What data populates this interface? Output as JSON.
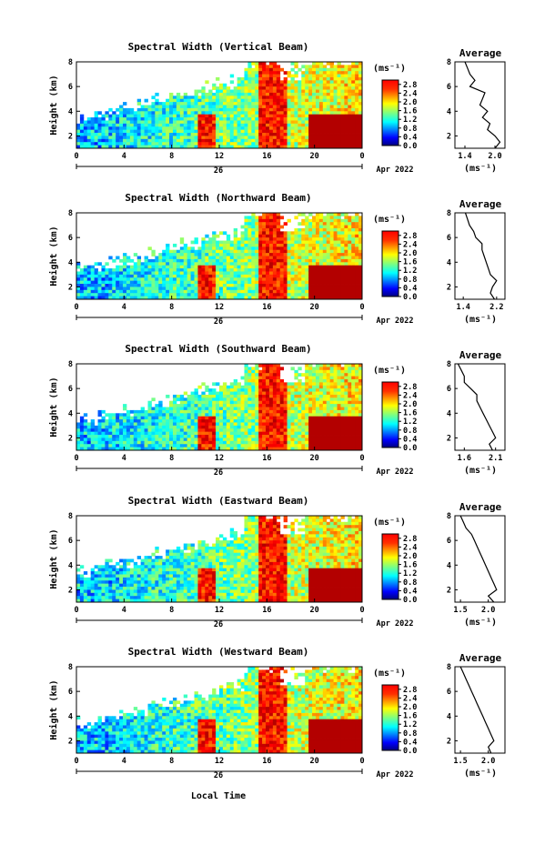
{
  "figure": {
    "xlabel": "Local Time",
    "date_label": "Apr 2022",
    "day_label": "26",
    "ylabel": "Height (km)",
    "avg_title": "Average",
    "unit_label": "(ms⁻¹)",
    "colorbar_ticks": [
      "2.8",
      "2.4",
      "2.0",
      "1.6",
      "1.2",
      "0.8",
      "0.4",
      "0.0"
    ]
  },
  "chart_data": [
    {
      "type": "heatmap",
      "title": "Spectral Width (Vertical Beam)",
      "x_ticks": [
        "0",
        "4",
        "8",
        "12",
        "16",
        "20",
        "0"
      ],
      "y_ticks": [
        "8",
        "6",
        "4",
        "2"
      ],
      "xlim": [
        0,
        24
      ],
      "ylim": [
        1,
        8
      ],
      "colorbar_range": [
        0,
        3.0
      ],
      "average_profile": {
        "x_ticks": [
          "1.4",
          "2.0"
        ],
        "xlim": [
          1.2,
          2.2
        ],
        "heights": [
          1.0,
          1.5,
          2.0,
          2.5,
          3.0,
          3.5,
          4.0,
          4.5,
          5.0,
          5.5,
          6.0,
          6.5,
          7.0,
          7.5,
          8.0
        ],
        "values": [
          2.0,
          2.1,
          2.0,
          1.85,
          1.9,
          1.75,
          1.85,
          1.7,
          1.75,
          1.8,
          1.5,
          1.6,
          1.5,
          1.45,
          1.4
        ]
      }
    },
    {
      "type": "heatmap",
      "title": "Spectral Width (Northward Beam)",
      "x_ticks": [
        "0",
        "4",
        "8",
        "12",
        "16",
        "20",
        "0"
      ],
      "y_ticks": [
        "8",
        "6",
        "4",
        "2"
      ],
      "xlim": [
        0,
        24
      ],
      "ylim": [
        1,
        8
      ],
      "colorbar_range": [
        0,
        3.0
      ],
      "average_profile": {
        "x_ticks": [
          "1.4",
          "2.2"
        ],
        "xlim": [
          1.2,
          2.4
        ],
        "heights": [
          1.0,
          1.5,
          2.0,
          2.5,
          3.0,
          3.5,
          4.0,
          4.5,
          5.0,
          5.5,
          6.0,
          6.5,
          7.0,
          7.5,
          8.0
        ],
        "values": [
          2.15,
          2.05,
          2.1,
          2.2,
          2.05,
          2.0,
          1.95,
          1.9,
          1.85,
          1.85,
          1.7,
          1.65,
          1.55,
          1.5,
          1.45
        ]
      }
    },
    {
      "type": "heatmap",
      "title": "Spectral Width (Southward Beam)",
      "x_ticks": [
        "0",
        "4",
        "8",
        "12",
        "16",
        "20",
        "0"
      ],
      "y_ticks": [
        "8",
        "6",
        "4",
        "2"
      ],
      "xlim": [
        0,
        24
      ],
      "ylim": [
        1,
        8
      ],
      "colorbar_range": [
        0,
        3.0
      ],
      "average_profile": {
        "x_ticks": [
          "1.6",
          "2.1"
        ],
        "xlim": [
          1.45,
          2.25
        ],
        "heights": [
          1.0,
          1.5,
          2.0,
          2.5,
          3.0,
          3.5,
          4.0,
          4.5,
          5.0,
          5.5,
          6.0,
          6.5,
          7.0,
          7.5,
          8.0
        ],
        "values": [
          2.05,
          2.0,
          2.1,
          2.05,
          2.0,
          1.95,
          1.9,
          1.85,
          1.8,
          1.8,
          1.7,
          1.6,
          1.6,
          1.55,
          1.5
        ]
      }
    },
    {
      "type": "heatmap",
      "title": "Spectral Width (Eastward Beam)",
      "x_ticks": [
        "0",
        "4",
        "8",
        "12",
        "16",
        "20",
        "0"
      ],
      "y_ticks": [
        "8",
        "6",
        "4",
        "2"
      ],
      "xlim": [
        0,
        24
      ],
      "ylim": [
        1,
        8
      ],
      "colorbar_range": [
        0,
        3.0
      ],
      "average_profile": {
        "x_ticks": [
          "1.5",
          "2.0"
        ],
        "xlim": [
          1.4,
          2.3
        ],
        "heights": [
          1.0,
          1.5,
          2.0,
          2.5,
          3.0,
          3.5,
          4.0,
          4.5,
          5.0,
          5.5,
          6.0,
          6.5,
          7.0,
          7.5,
          8.0
        ],
        "values": [
          2.1,
          2.0,
          2.15,
          2.1,
          2.05,
          2.0,
          1.95,
          1.9,
          1.85,
          1.8,
          1.75,
          1.7,
          1.6,
          1.55,
          1.5
        ]
      }
    },
    {
      "type": "heatmap",
      "title": "Spectral Width (Westward Beam)",
      "x_ticks": [
        "0",
        "4",
        "8",
        "12",
        "16",
        "20",
        "0"
      ],
      "y_ticks": [
        "8",
        "6",
        "4",
        "2"
      ],
      "xlim": [
        0,
        24
      ],
      "ylim": [
        1,
        8
      ],
      "colorbar_range": [
        0,
        3.0
      ],
      "average_profile": {
        "x_ticks": [
          "1.5",
          "2.0"
        ],
        "xlim": [
          1.4,
          2.3
        ],
        "heights": [
          1.0,
          1.5,
          2.0,
          2.5,
          3.0,
          3.5,
          4.0,
          4.5,
          5.0,
          5.5,
          6.0,
          6.5,
          7.0,
          7.5,
          8.0
        ],
        "values": [
          2.05,
          2.0,
          2.1,
          2.05,
          2.0,
          1.95,
          1.9,
          1.85,
          1.8,
          1.75,
          1.7,
          1.65,
          1.6,
          1.55,
          1.5
        ]
      }
    }
  ]
}
